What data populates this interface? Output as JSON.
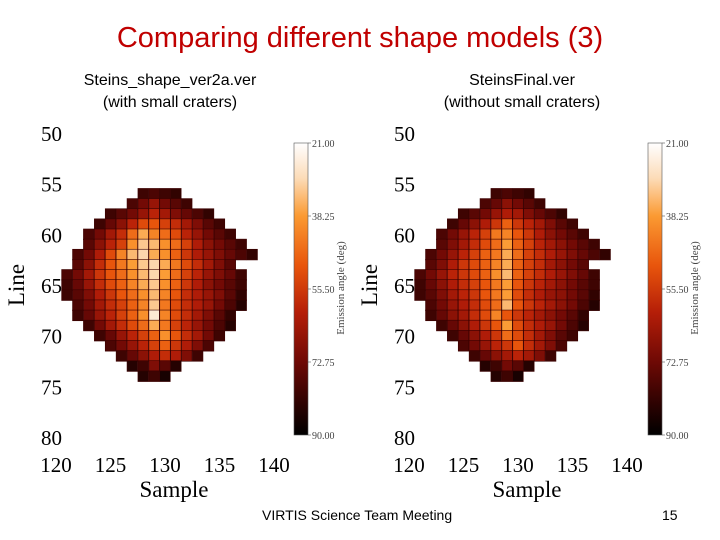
{
  "slide": {
    "title": "Comparing different shape models (3)",
    "footer": "VIRTIS Science Team Meeting",
    "page_number": "15"
  },
  "colors": {
    "title": "#c00000"
  },
  "chart_data": [
    {
      "type": "heatmap",
      "subtitle": [
        "Steins_shape_ver2a.ver",
        "(with small craters)"
      ],
      "xlabel": "Sample",
      "ylabel": "Line",
      "xlim": [
        120,
        140
      ],
      "ylim": [
        80,
        50
      ],
      "xticks": [
        "120",
        "125",
        "130",
        "135",
        "140"
      ],
      "yticks": [
        "50",
        "55",
        "60",
        "65",
        "70",
        "75",
        "80"
      ],
      "colorbar": {
        "label": "Emission angle (deg)",
        "ticks": [
          "21.00",
          "38.25",
          "55.50",
          "72.75",
          "90.00"
        ],
        "range": [
          21,
          90
        ]
      },
      "pixels": [
        {
          "line": 56,
          "sample": [
            128,
            131
          ],
          "values": [
            80,
            78,
            80,
            82
          ]
        },
        {
          "line": 57,
          "sample": [
            127,
            132
          ],
          "values": [
            78,
            72,
            66,
            72,
            76,
            80
          ]
        },
        {
          "line": 58,
          "sample": [
            125,
            134
          ],
          "values": [
            80,
            76,
            72,
            66,
            60,
            64,
            70,
            74,
            78,
            82
          ]
        },
        {
          "line": 59,
          "sample": [
            124,
            135
          ],
          "values": [
            80,
            74,
            68,
            60,
            52,
            50,
            54,
            58,
            64,
            70,
            76,
            80
          ]
        },
        {
          "line": 60,
          "sample": [
            123,
            136
          ],
          "values": [
            78,
            72,
            64,
            58,
            46,
            36,
            42,
            46,
            52,
            60,
            66,
            72,
            76,
            80
          ]
        },
        {
          "line": 61,
          "sample": [
            123,
            137
          ],
          "values": [
            76,
            68,
            60,
            54,
            40,
            32,
            34,
            40,
            46,
            54,
            62,
            68,
            72,
            76,
            80
          ]
        },
        {
          "line": 62,
          "sample": [
            122,
            138
          ],
          "values": [
            78,
            72,
            62,
            52,
            42,
            34,
            30,
            36,
            40,
            48,
            56,
            62,
            66,
            70,
            74,
            78,
            82
          ]
        },
        {
          "line": 63,
          "sample": [
            122,
            136
          ],
          "values": [
            76,
            68,
            58,
            50,
            44,
            38,
            32,
            30,
            36,
            44,
            52,
            58,
            64,
            70,
            76
          ]
        },
        {
          "line": 64,
          "sample": [
            121,
            137
          ],
          "values": [
            78,
            72,
            64,
            56,
            50,
            46,
            40,
            34,
            30,
            38,
            46,
            54,
            60,
            66,
            70,
            74,
            80
          ]
        },
        {
          "line": 65,
          "sample": [
            121,
            137
          ],
          "values": [
            80,
            74,
            66,
            58,
            52,
            48,
            42,
            36,
            32,
            40,
            48,
            56,
            62,
            68,
            72,
            76,
            80
          ]
        },
        {
          "line": 66,
          "sample": [
            121,
            137
          ],
          "values": [
            80,
            76,
            70,
            62,
            56,
            50,
            46,
            40,
            34,
            42,
            50,
            58,
            62,
            66,
            70,
            76,
            82
          ]
        },
        {
          "line": 67,
          "sample": [
            122,
            137
          ],
          "values": [
            78,
            72,
            64,
            58,
            54,
            48,
            42,
            32,
            44,
            52,
            58,
            62,
            66,
            72,
            78,
            84
          ]
        },
        {
          "line": 68,
          "sample": [
            122,
            136
          ],
          "values": [
            80,
            74,
            66,
            60,
            54,
            48,
            40,
            26,
            42,
            52,
            58,
            64,
            70,
            76,
            82
          ]
        },
        {
          "line": 69,
          "sample": [
            123,
            136
          ],
          "values": [
            80,
            72,
            64,
            58,
            52,
            46,
            36,
            44,
            54,
            60,
            66,
            72,
            78,
            84
          ]
        },
        {
          "line": 70,
          "sample": [
            124,
            135
          ],
          "values": [
            80,
            74,
            66,
            60,
            54,
            48,
            40,
            50,
            58,
            64,
            72,
            80
          ]
        },
        {
          "line": 71,
          "sample": [
            125,
            134
          ],
          "values": [
            78,
            72,
            66,
            60,
            54,
            48,
            56,
            62,
            70,
            78
          ]
        },
        {
          "line": 72,
          "sample": [
            126,
            133
          ],
          "values": [
            80,
            74,
            68,
            62,
            58,
            62,
            70,
            80
          ]
        },
        {
          "line": 73,
          "sample": [
            127,
            131
          ],
          "values": [
            84,
            80,
            70,
            76,
            84
          ]
        },
        {
          "line": 74,
          "sample": [
            128,
            130
          ],
          "values": [
            84,
            80,
            86
          ]
        }
      ]
    },
    {
      "type": "heatmap",
      "subtitle": [
        "SteinsFinal.ver",
        "(without small craters)"
      ],
      "xlabel": "Sample",
      "ylabel": "Line",
      "xlim": [
        120,
        140
      ],
      "ylim": [
        80,
        50
      ],
      "xticks": [
        "120",
        "125",
        "130",
        "135",
        "140"
      ],
      "yticks": [
        "50",
        "55",
        "60",
        "65",
        "70",
        "75",
        "80"
      ],
      "colorbar": {
        "label": "Emission angle (deg)",
        "ticks": [
          "21.00",
          "38.25",
          "55.50",
          "72.75",
          "90.00"
        ],
        "range": [
          21,
          90
        ]
      },
      "pixels": [
        {
          "line": 56,
          "sample": [
            128,
            131
          ],
          "values": [
            80,
            78,
            80,
            82
          ]
        },
        {
          "line": 57,
          "sample": [
            127,
            132
          ],
          "values": [
            78,
            74,
            68,
            72,
            76,
            80
          ]
        },
        {
          "line": 58,
          "sample": [
            125,
            134
          ],
          "values": [
            80,
            76,
            72,
            66,
            62,
            64,
            70,
            74,
            78,
            82
          ]
        },
        {
          "line": 59,
          "sample": [
            124,
            135
          ],
          "values": [
            80,
            74,
            68,
            62,
            56,
            48,
            56,
            60,
            64,
            70,
            76,
            80
          ]
        },
        {
          "line": 60,
          "sample": [
            123,
            136
          ],
          "values": [
            78,
            72,
            66,
            60,
            54,
            44,
            42,
            50,
            56,
            62,
            68,
            72,
            76,
            80
          ]
        },
        {
          "line": 61,
          "sample": [
            123,
            137
          ],
          "values": [
            76,
            70,
            64,
            58,
            52,
            46,
            38,
            48,
            54,
            60,
            64,
            68,
            72,
            76,
            80
          ]
        },
        {
          "line": 62,
          "sample": [
            122,
            138
          ],
          "values": [
            78,
            72,
            66,
            60,
            54,
            48,
            44,
            36,
            46,
            54,
            58,
            62,
            66,
            70,
            74,
            78,
            82
          ]
        },
        {
          "line": 63,
          "sample": [
            122,
            136
          ],
          "values": [
            76,
            70,
            62,
            56,
            52,
            48,
            42,
            36,
            48,
            54,
            58,
            64,
            68,
            72,
            76
          ]
        },
        {
          "line": 64,
          "sample": [
            121,
            137
          ],
          "values": [
            78,
            72,
            66,
            60,
            56,
            52,
            48,
            40,
            34,
            48,
            54,
            58,
            62,
            66,
            70,
            74,
            80
          ]
        },
        {
          "line": 65,
          "sample": [
            121,
            137
          ],
          "values": [
            80,
            74,
            68,
            62,
            58,
            54,
            50,
            44,
            38,
            50,
            56,
            60,
            64,
            68,
            72,
            76,
            80
          ]
        },
        {
          "line": 66,
          "sample": [
            121,
            137
          ],
          "values": [
            80,
            76,
            70,
            64,
            60,
            56,
            50,
            44,
            38,
            52,
            58,
            62,
            66,
            68,
            72,
            76,
            82
          ]
        },
        {
          "line": 67,
          "sample": [
            122,
            137
          ],
          "values": [
            78,
            72,
            66,
            62,
            58,
            52,
            46,
            34,
            50,
            56,
            60,
            64,
            68,
            72,
            78,
            84
          ]
        },
        {
          "line": 68,
          "sample": [
            122,
            136
          ],
          "values": [
            80,
            74,
            68,
            64,
            58,
            52,
            42,
            50,
            56,
            60,
            64,
            68,
            72,
            76,
            82
          ]
        },
        {
          "line": 69,
          "sample": [
            123,
            136
          ],
          "values": [
            80,
            74,
            68,
            62,
            56,
            50,
            38,
            52,
            58,
            62,
            66,
            72,
            78,
            84
          ]
        },
        {
          "line": 70,
          "sample": [
            124,
            135
          ],
          "values": [
            80,
            74,
            68,
            62,
            56,
            46,
            52,
            58,
            64,
            70,
            76,
            80
          ]
        },
        {
          "line": 71,
          "sample": [
            125,
            134
          ],
          "values": [
            78,
            72,
            66,
            60,
            56,
            50,
            58,
            64,
            70,
            78
          ]
        },
        {
          "line": 72,
          "sample": [
            126,
            133
          ],
          "values": [
            80,
            74,
            68,
            64,
            60,
            64,
            70,
            80
          ]
        },
        {
          "line": 73,
          "sample": [
            127,
            131
          ],
          "values": [
            84,
            80,
            72,
            76,
            84
          ]
        },
        {
          "line": 74,
          "sample": [
            128,
            130
          ],
          "values": [
            84,
            80,
            86
          ]
        }
      ]
    }
  ]
}
